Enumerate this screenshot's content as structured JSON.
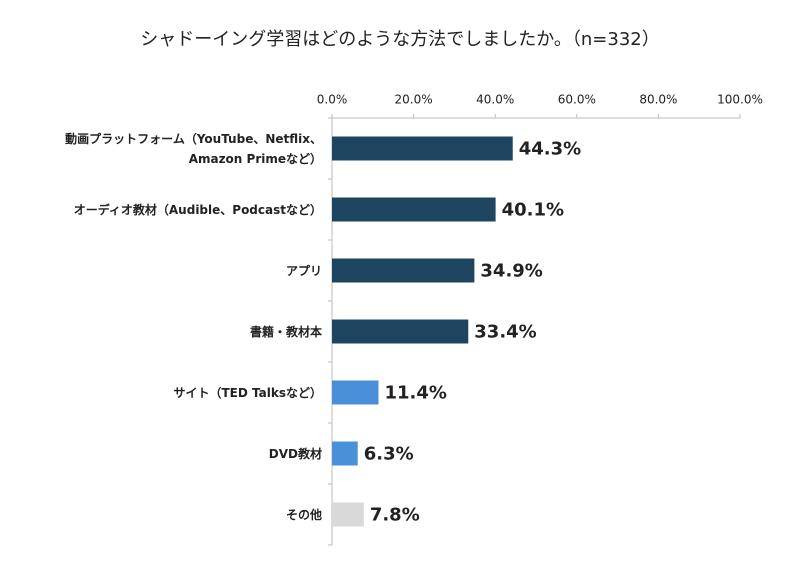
{
  "chart_data": {
    "type": "hbar",
    "title": "シャドーイング学習はどのような方法でしましたか。（n=332）",
    "categories": [
      "動画プラットフォーム（YouTube、Netflix、Amazon Primeなど）",
      "オーディオ教材（Audible、Podcastなど）",
      "アプリ",
      "書籍・教材本",
      "サイト（TED Talksなど）",
      "DVD教材",
      "その他"
    ],
    "values": [
      44.3,
      40.1,
      34.9,
      33.4,
      11.4,
      6.3,
      7.8
    ],
    "value_labels": [
      "44.3%",
      "40.1%",
      "34.9%",
      "33.4%",
      "11.4%",
      "6.3%",
      "7.8%"
    ],
    "colors": [
      "#1d4560",
      "#1d4560",
      "#1d4560",
      "#1d4560",
      "#4a90d9",
      "#4a90d9",
      "#d9d9d9"
    ],
    "xlim": [
      0,
      100
    ],
    "xticks": [
      {
        "value": 0,
        "label": "0.0%"
      },
      {
        "value": 20,
        "label": "20.0%"
      },
      {
        "value": 40,
        "label": "40.0%"
      },
      {
        "value": 60,
        "label": "60.0%"
      },
      {
        "value": 80,
        "label": "80.0%"
      },
      {
        "value": 100,
        "label": "100.0%"
      }
    ]
  }
}
